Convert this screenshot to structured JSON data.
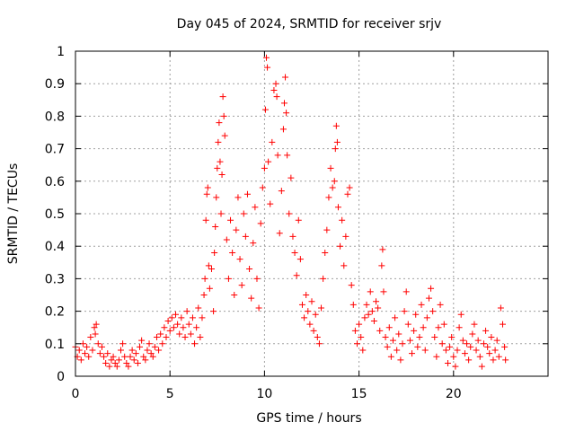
{
  "chart_data": {
    "type": "scatter",
    "title": "Day 045 of 2024, SRMTID for receiver srjv",
    "xlabel": "GPS time / hours",
    "ylabel": "SRMTID / TECUs",
    "xlim": [
      0,
      25
    ],
    "ylim": [
      0,
      1
    ],
    "xticks": [
      0,
      5,
      10,
      15,
      20
    ],
    "xtick_labels": [
      "0",
      "5",
      "10",
      "15",
      "20"
    ],
    "yticks": [
      0,
      0.1,
      0.2,
      0.3,
      0.4,
      0.5,
      0.6,
      0.7,
      0.8,
      0.9,
      1
    ],
    "ytick_labels": [
      "0",
      "0.1",
      "0.2",
      "0.3",
      "0.4",
      "0.5",
      "0.6",
      "0.7",
      "0.8",
      "0.9",
      "1"
    ],
    "grid": true,
    "marker": "+",
    "marker_color": "#ff0000",
    "series": [
      {
        "name": "SRMTID",
        "points": [
          [
            0.0,
            0.09
          ],
          [
            0.1,
            0.06
          ],
          [
            0.2,
            0.08
          ],
          [
            0.3,
            0.05
          ],
          [
            0.4,
            0.1
          ],
          [
            0.5,
            0.07
          ],
          [
            0.6,
            0.09
          ],
          [
            0.7,
            0.06
          ],
          [
            0.8,
            0.12
          ],
          [
            0.9,
            0.08
          ],
          [
            1.0,
            0.15
          ],
          [
            1.05,
            0.13
          ],
          [
            1.1,
            0.16
          ],
          [
            1.2,
            0.1
          ],
          [
            1.3,
            0.07
          ],
          [
            1.4,
            0.09
          ],
          [
            1.5,
            0.06
          ],
          [
            1.6,
            0.04
          ],
          [
            1.7,
            0.07
          ],
          [
            1.8,
            0.03
          ],
          [
            1.9,
            0.05
          ],
          [
            2.0,
            0.06
          ],
          [
            2.1,
            0.04
          ],
          [
            2.2,
            0.03
          ],
          [
            2.3,
            0.05
          ],
          [
            2.4,
            0.08
          ],
          [
            2.5,
            0.1
          ],
          [
            2.6,
            0.06
          ],
          [
            2.7,
            0.04
          ],
          [
            2.8,
            0.03
          ],
          [
            2.9,
            0.06
          ],
          [
            3.0,
            0.08
          ],
          [
            3.1,
            0.05
          ],
          [
            3.2,
            0.07
          ],
          [
            3.3,
            0.04
          ],
          [
            3.4,
            0.09
          ],
          [
            3.5,
            0.11
          ],
          [
            3.6,
            0.06
          ],
          [
            3.7,
            0.05
          ],
          [
            3.8,
            0.08
          ],
          [
            3.9,
            0.1
          ],
          [
            4.0,
            0.07
          ],
          [
            4.1,
            0.06
          ],
          [
            4.2,
            0.09
          ],
          [
            4.3,
            0.12
          ],
          [
            4.4,
            0.08
          ],
          [
            4.5,
            0.13
          ],
          [
            4.6,
            0.1
          ],
          [
            4.7,
            0.15
          ],
          [
            4.8,
            0.12
          ],
          [
            4.9,
            0.17
          ],
          [
            5.0,
            0.14
          ],
          [
            5.1,
            0.18
          ],
          [
            5.2,
            0.15
          ],
          [
            5.3,
            0.19
          ],
          [
            5.4,
            0.16
          ],
          [
            5.5,
            0.13
          ],
          [
            5.6,
            0.18
          ],
          [
            5.7,
            0.15
          ],
          [
            5.8,
            0.12
          ],
          [
            5.9,
            0.2
          ],
          [
            6.0,
            0.16
          ],
          [
            6.1,
            0.13
          ],
          [
            6.2,
            0.18
          ],
          [
            6.3,
            0.1
          ],
          [
            6.4,
            0.15
          ],
          [
            6.5,
            0.21
          ],
          [
            6.6,
            0.12
          ],
          [
            6.7,
            0.18
          ],
          [
            6.8,
            0.25
          ],
          [
            6.85,
            0.3
          ],
          [
            6.9,
            0.48
          ],
          [
            6.95,
            0.56
          ],
          [
            7.0,
            0.58
          ],
          [
            7.05,
            0.34
          ],
          [
            7.1,
            0.27
          ],
          [
            7.2,
            0.33
          ],
          [
            7.3,
            0.2
          ],
          [
            7.35,
            0.38
          ],
          [
            7.4,
            0.46
          ],
          [
            7.45,
            0.55
          ],
          [
            7.5,
            0.64
          ],
          [
            7.55,
            0.72
          ],
          [
            7.6,
            0.78
          ],
          [
            7.65,
            0.66
          ],
          [
            7.7,
            0.5
          ],
          [
            7.75,
            0.62
          ],
          [
            7.8,
            0.86
          ],
          [
            7.85,
            0.8
          ],
          [
            7.9,
            0.74
          ],
          [
            8.0,
            0.42
          ],
          [
            8.1,
            0.3
          ],
          [
            8.2,
            0.48
          ],
          [
            8.3,
            0.38
          ],
          [
            8.4,
            0.25
          ],
          [
            8.5,
            0.45
          ],
          [
            8.6,
            0.55
          ],
          [
            8.7,
            0.36
          ],
          [
            8.8,
            0.28
          ],
          [
            8.9,
            0.5
          ],
          [
            9.0,
            0.43
          ],
          [
            9.1,
            0.56
          ],
          [
            9.2,
            0.33
          ],
          [
            9.3,
            0.24
          ],
          [
            9.4,
            0.41
          ],
          [
            9.5,
            0.52
          ],
          [
            9.6,
            0.3
          ],
          [
            9.7,
            0.21
          ],
          [
            9.8,
            0.47
          ],
          [
            9.9,
            0.58
          ],
          [
            10.0,
            0.64
          ],
          [
            10.05,
            0.82
          ],
          [
            10.1,
            0.98
          ],
          [
            10.15,
            0.95
          ],
          [
            10.2,
            0.66
          ],
          [
            10.3,
            0.53
          ],
          [
            10.4,
            0.72
          ],
          [
            10.5,
            0.88
          ],
          [
            10.6,
            0.9
          ],
          [
            10.65,
            0.86
          ],
          [
            10.7,
            0.68
          ],
          [
            10.8,
            0.44
          ],
          [
            10.9,
            0.57
          ],
          [
            11.0,
            0.76
          ],
          [
            11.05,
            0.84
          ],
          [
            11.1,
            0.92
          ],
          [
            11.15,
            0.81
          ],
          [
            11.2,
            0.68
          ],
          [
            11.3,
            0.5
          ],
          [
            11.4,
            0.61
          ],
          [
            11.5,
            0.43
          ],
          [
            11.6,
            0.38
          ],
          [
            11.7,
            0.31
          ],
          [
            11.8,
            0.48
          ],
          [
            11.9,
            0.36
          ],
          [
            12.0,
            0.22
          ],
          [
            12.1,
            0.18
          ],
          [
            12.2,
            0.25
          ],
          [
            12.3,
            0.2
          ],
          [
            12.4,
            0.16
          ],
          [
            12.5,
            0.23
          ],
          [
            12.6,
            0.14
          ],
          [
            12.7,
            0.19
          ],
          [
            12.8,
            0.12
          ],
          [
            12.9,
            0.1
          ],
          [
            13.0,
            0.21
          ],
          [
            13.1,
            0.3
          ],
          [
            13.2,
            0.38
          ],
          [
            13.3,
            0.45
          ],
          [
            13.4,
            0.55
          ],
          [
            13.5,
            0.64
          ],
          [
            13.6,
            0.58
          ],
          [
            13.7,
            0.6
          ],
          [
            13.75,
            0.7
          ],
          [
            13.8,
            0.77
          ],
          [
            13.85,
            0.72
          ],
          [
            13.9,
            0.52
          ],
          [
            14.0,
            0.4
          ],
          [
            14.1,
            0.48
          ],
          [
            14.2,
            0.34
          ],
          [
            14.3,
            0.43
          ],
          [
            14.4,
            0.56
          ],
          [
            14.5,
            0.58
          ],
          [
            14.6,
            0.28
          ],
          [
            14.7,
            0.22
          ],
          [
            14.8,
            0.14
          ],
          [
            14.9,
            0.1
          ],
          [
            15.0,
            0.16
          ],
          [
            15.1,
            0.12
          ],
          [
            15.2,
            0.08
          ],
          [
            15.3,
            0.18
          ],
          [
            15.4,
            0.22
          ],
          [
            15.5,
            0.19
          ],
          [
            15.6,
            0.26
          ],
          [
            15.7,
            0.2
          ],
          [
            15.8,
            0.17
          ],
          [
            15.9,
            0.23
          ],
          [
            16.0,
            0.21
          ],
          [
            16.1,
            0.14
          ],
          [
            16.2,
            0.34
          ],
          [
            16.25,
            0.39
          ],
          [
            16.3,
            0.26
          ],
          [
            16.4,
            0.12
          ],
          [
            16.5,
            0.09
          ],
          [
            16.6,
            0.15
          ],
          [
            16.7,
            0.06
          ],
          [
            16.8,
            0.11
          ],
          [
            16.9,
            0.18
          ],
          [
            17.0,
            0.08
          ],
          [
            17.1,
            0.13
          ],
          [
            17.2,
            0.05
          ],
          [
            17.3,
            0.1
          ],
          [
            17.4,
            0.2
          ],
          [
            17.5,
            0.26
          ],
          [
            17.6,
            0.16
          ],
          [
            17.7,
            0.11
          ],
          [
            17.8,
            0.07
          ],
          [
            17.9,
            0.14
          ],
          [
            18.0,
            0.19
          ],
          [
            18.1,
            0.09
          ],
          [
            18.2,
            0.12
          ],
          [
            18.3,
            0.22
          ],
          [
            18.4,
            0.15
          ],
          [
            18.5,
            0.08
          ],
          [
            18.6,
            0.18
          ],
          [
            18.7,
            0.24
          ],
          [
            18.8,
            0.27
          ],
          [
            18.9,
            0.2
          ],
          [
            19.0,
            0.12
          ],
          [
            19.1,
            0.06
          ],
          [
            19.2,
            0.15
          ],
          [
            19.3,
            0.22
          ],
          [
            19.4,
            0.1
          ],
          [
            19.5,
            0.16
          ],
          [
            19.6,
            0.08
          ],
          [
            19.7,
            0.04
          ],
          [
            19.8,
            0.09
          ],
          [
            19.9,
            0.12
          ],
          [
            20.0,
            0.06
          ],
          [
            20.1,
            0.03
          ],
          [
            20.2,
            0.08
          ],
          [
            20.3,
            0.15
          ],
          [
            20.4,
            0.19
          ],
          [
            20.5,
            0.11
          ],
          [
            20.6,
            0.07
          ],
          [
            20.7,
            0.1
          ],
          [
            20.8,
            0.05
          ],
          [
            20.9,
            0.09
          ],
          [
            21.0,
            0.13
          ],
          [
            21.1,
            0.16
          ],
          [
            21.2,
            0.08
          ],
          [
            21.3,
            0.11
          ],
          [
            21.4,
            0.06
          ],
          [
            21.5,
            0.03
          ],
          [
            21.6,
            0.1
          ],
          [
            21.7,
            0.14
          ],
          [
            21.8,
            0.09
          ],
          [
            21.9,
            0.07
          ],
          [
            22.0,
            0.12
          ],
          [
            22.1,
            0.05
          ],
          [
            22.2,
            0.08
          ],
          [
            22.3,
            0.11
          ],
          [
            22.4,
            0.06
          ],
          [
            22.5,
            0.21
          ],
          [
            22.6,
            0.16
          ],
          [
            22.7,
            0.09
          ],
          [
            22.75,
            0.05
          ]
        ]
      }
    ]
  }
}
